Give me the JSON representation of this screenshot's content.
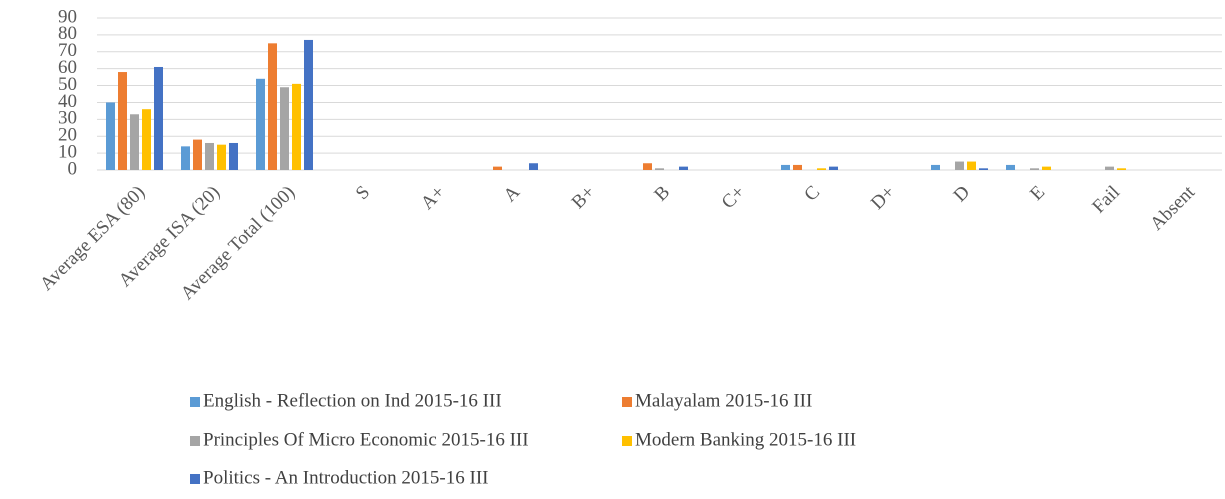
{
  "chart_data": {
    "type": "bar",
    "categories": [
      "Average ESA (80)",
      "Average ISA (20)",
      "Average Total (100)",
      "S",
      "A+",
      "A",
      "B+",
      "B",
      "C+",
      "C",
      "D+",
      "D",
      "E",
      "Fail",
      "Absent"
    ],
    "series": [
      {
        "name": "English - Reflection on Ind 2015-16 III",
        "color": "#5b9bd5",
        "values": [
          40,
          14,
          54,
          0,
          0,
          0,
          0,
          0,
          0,
          3,
          0,
          3,
          3,
          0,
          0
        ]
      },
      {
        "name": "Malayalam  2015-16 III",
        "color": "#ed7d31",
        "values": [
          58,
          18,
          75,
          0,
          0,
          2,
          0,
          4,
          0,
          3,
          0,
          0,
          0,
          0,
          0
        ]
      },
      {
        "name": "Principles Of  Micro Economic 2015-16 III",
        "color": "#a5a5a5",
        "values": [
          33,
          16,
          49,
          0,
          0,
          0,
          0,
          1,
          0,
          0,
          0,
          5,
          1,
          2,
          0
        ]
      },
      {
        "name": "Modern Banking 2015-16 III",
        "color": "#ffc000",
        "values": [
          36,
          15,
          51,
          0,
          0,
          0,
          0,
          0,
          0,
          1,
          0,
          5,
          2,
          1,
          0
        ]
      },
      {
        "name": "Politics - An Introduction 2015-16 III",
        "color": "#4472c4",
        "values": [
          61,
          16,
          77,
          0,
          0,
          4,
          0,
          2,
          0,
          2,
          0,
          1,
          0,
          0,
          0
        ]
      }
    ],
    "ylim": [
      0,
      90
    ],
    "yticks": [
      0,
      10,
      20,
      30,
      40,
      50,
      60,
      70,
      80,
      90
    ],
    "grid": true,
    "legend": "bottom"
  }
}
